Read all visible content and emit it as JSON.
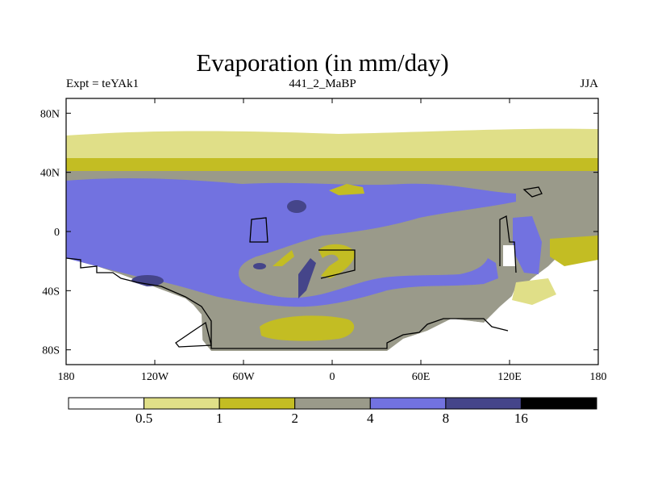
{
  "chart_data": {
    "type": "heatmap",
    "title": "Evaporation (in mm/day)",
    "subtitle_left": "Expt = teYAk1",
    "subtitle_center": "441_2_MaBP",
    "subtitle_right": "JJA",
    "x_range": [
      -180,
      180
    ],
    "y_range": [
      -90,
      90
    ],
    "x_ticks": [
      {
        "value": -180,
        "label": "180"
      },
      {
        "value": -120,
        "label": "120W"
      },
      {
        "value": -60,
        "label": "60W"
      },
      {
        "value": 0,
        "label": "0"
      },
      {
        "value": 60,
        "label": "60E"
      },
      {
        "value": 120,
        "label": "120E"
      },
      {
        "value": 180,
        "label": "180"
      }
    ],
    "y_ticks": [
      {
        "value": 80,
        "label": "80N"
      },
      {
        "value": 40,
        "label": "40N"
      },
      {
        "value": 0,
        "label": "0"
      },
      {
        "value": -40,
        "label": "40S"
      },
      {
        "value": -80,
        "label": "80S"
      }
    ],
    "colorbar": {
      "levels": [
        "0.5",
        "1",
        "2",
        "4",
        "8",
        "16"
      ],
      "colors": [
        "#ffffff",
        "#e0df88",
        "#c3bd23",
        "#9a9a8a",
        "#7272e0",
        "#45458a",
        "#000000"
      ]
    }
  }
}
